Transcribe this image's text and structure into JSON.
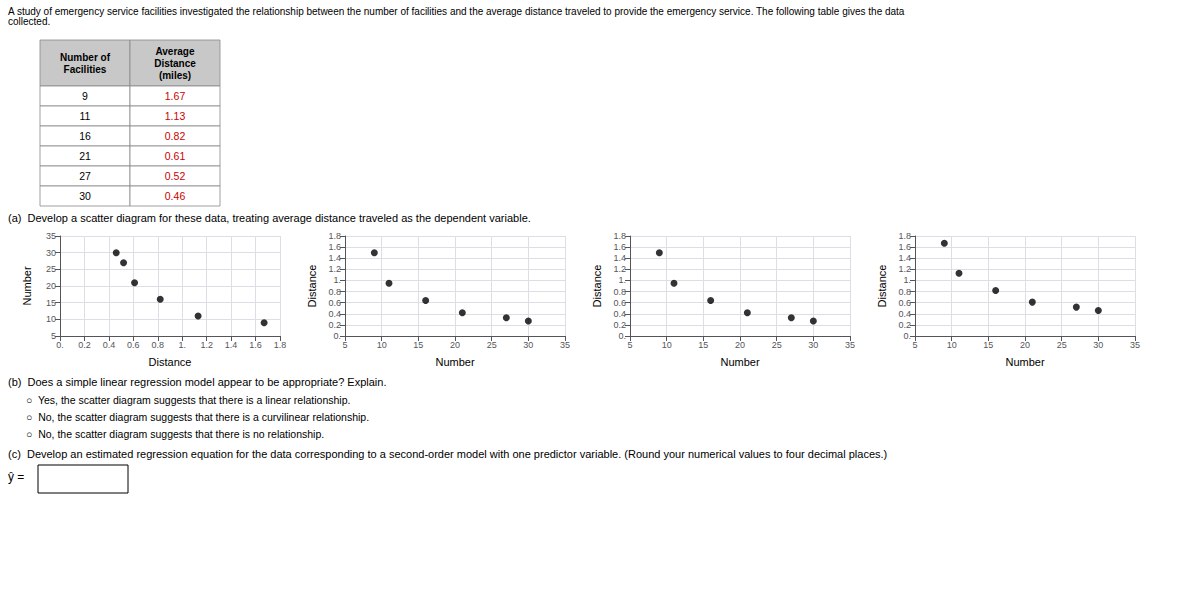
{
  "annotations": [
    "A study of emergency service facilities investigated the relationship between the number of facilities and the average distance traveled to provide the emergency service. The following table gives the data collected.",
    "(a)  Develop a scatter diagram for these data, treating average distance traveled as the dependent variable.",
    "(b)  Does a simple linear regression model appear to be appropriate? Explain.",
    "○  Yes, the scatter diagram suggests that there is a linear relationship.",
    "○  No, the scatter diagram suggests that there is a curvilinear relationship.",
    "○  No, the scatter diagram suggests that there is no relationship.",
    "(c)  Develop an estimated regression equation for the data corresponding to a second-order model with one predictor variable. (Round your numerical values to four decimal places.)",
    "ŷ ="
  ],
  "chart_data": [
    {
      "type": "table",
      "series": [
        {
          "name": "Number of\nFacilities",
          "values": [
            9,
            11,
            16,
            21,
            27,
            30
          ]
        },
        {
          "name": "Average\nDistance\n(miles)",
          "values": [
            1.67,
            1.13,
            0.82,
            0.61,
            0.52,
            0.46
          ],
          "color": "#cc0000"
        }
      ]
    },
    {
      "type": "scatter",
      "xlabel": "Distance",
      "ylabel": "Number",
      "x": [
        1.67,
        1.13,
        0.82,
        0.61,
        0.52,
        0.46
      ],
      "values": [
        9,
        11,
        16,
        21,
        27,
        30
      ],
      "color": "#000000",
      "grid": true,
      "xlim": [
        0.0,
        1.8
      ],
      "xticks": [
        {
          "value": 0.0,
          "label": "0."
        },
        0.2,
        0.4,
        0.6,
        0.8,
        {
          "value": 1.0,
          "label": "1."
        },
        1.2,
        1.4,
        1.6,
        1.8
      ],
      "ylim": [
        5,
        35
      ],
      "yticks": [
        5,
        10,
        15,
        20,
        25,
        30,
        35
      ]
    },
    {
      "type": "scatter",
      "xlabel": "Number",
      "ylabel": "Distance",
      "x": [
        9,
        11,
        16,
        21,
        27,
        30
      ],
      "values": [
        1.5,
        0.95,
        0.64,
        0.42,
        0.33,
        0.27
      ],
      "color": "#000000",
      "grid": true,
      "xlim": [
        5,
        35
      ],
      "xticks": [
        5,
        10,
        15,
        20,
        25,
        30,
        35
      ],
      "ylim": [
        0.0,
        1.8
      ],
      "yticks": [
        {
          "value": 0.0,
          "label": "0."
        },
        0.2,
        0.4,
        0.6,
        0.8,
        {
          "value": 1.0,
          "label": "1."
        },
        1.2,
        1.4,
        1.6,
        1.8
      ]
    },
    {
      "type": "scatter",
      "xlabel": "Number",
      "ylabel": "Distance",
      "x": [
        9,
        11,
        16,
        21,
        27,
        30
      ],
      "values": [
        1.5,
        0.95,
        0.64,
        0.42,
        0.33,
        0.27
      ],
      "color": "#000000",
      "grid": true,
      "xlim": [
        5,
        35
      ],
      "xticks": [
        5,
        10,
        15,
        20,
        25,
        30,
        35
      ],
      "ylim": [
        0.0,
        1.8
      ],
      "yticks": [
        {
          "value": 0.0,
          "label": "0."
        },
        0.2,
        0.4,
        0.6,
        0.8,
        {
          "value": 1.0,
          "label": "1."
        },
        1.2,
        1.4,
        1.6,
        1.8
      ]
    },
    {
      "type": "scatter",
      "xlabel": "Number",
      "ylabel": "Distance",
      "x": [
        9,
        11,
        16,
        21,
        27,
        30
      ],
      "values": [
        1.67,
        1.13,
        0.82,
        0.61,
        0.52,
        0.46
      ],
      "color": "#000000",
      "grid": true,
      "xlim": [
        5,
        35
      ],
      "xticks": [
        5,
        10,
        15,
        20,
        25,
        30,
        35
      ],
      "ylim": [
        0.0,
        1.8
      ],
      "yticks": [
        {
          "value": 0.0,
          "label": "0."
        },
        0.2,
        0.4,
        0.6,
        0.8,
        {
          "value": 1.0,
          "label": "1."
        },
        1.2,
        1.4,
        1.6,
        1.8
      ]
    }
  ]
}
